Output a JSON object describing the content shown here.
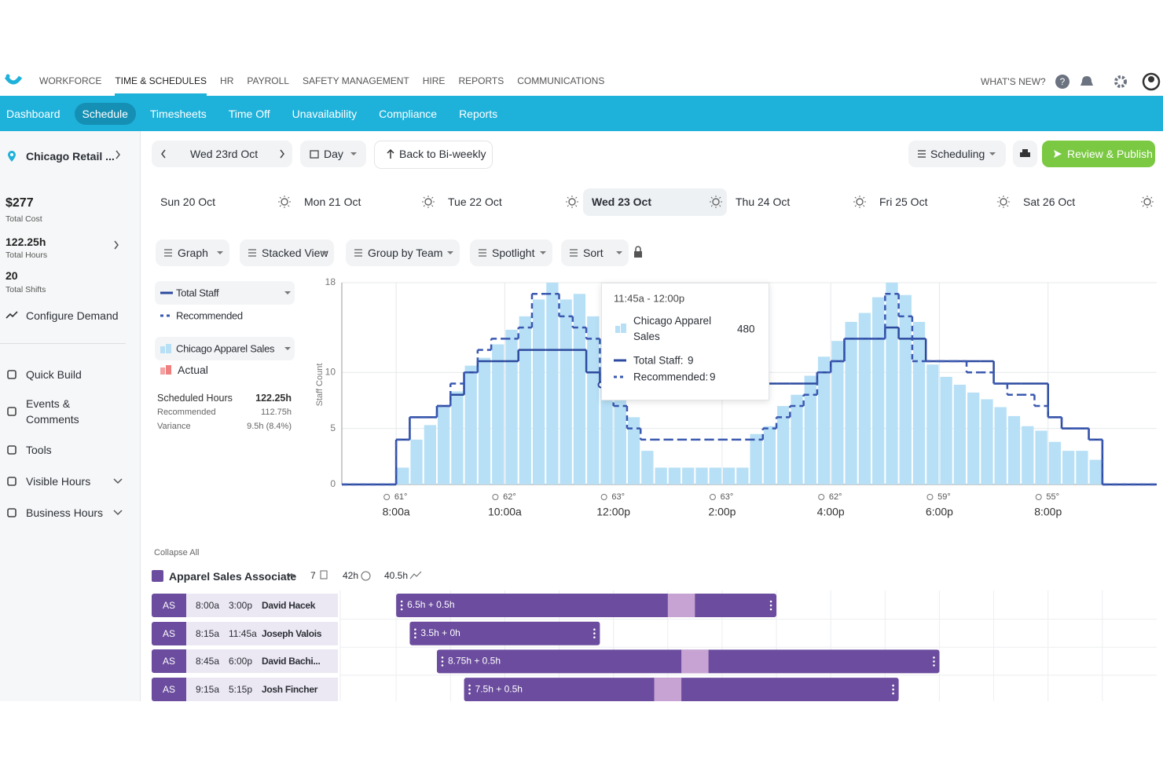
{
  "nav": {
    "items": [
      "WORKFORCE",
      "TIME & SCHEDULES",
      "HR",
      "PAYROLL",
      "SAFETY MANAGEMENT",
      "HIRE",
      "REPORTS",
      "COMMUNICATIONS"
    ],
    "whats_new": "WHAT'S NEW?"
  },
  "subnav": {
    "items": [
      "Dashboard",
      "Schedule",
      "Timesheets",
      "Time Off",
      "Unavailability",
      "Compliance",
      "Reports"
    ]
  },
  "sidebar": {
    "location": "Chicago Retail ...",
    "stats": [
      {
        "value": "$277",
        "label": "Total Cost"
      },
      {
        "value": "122.25h",
        "label": "Total Hours"
      },
      {
        "value": "20",
        "label": "Total Shifts"
      }
    ],
    "configure": "Configure Demand",
    "menu": [
      "Quick Build",
      "Events & Comments",
      "Tools",
      "Visible Hours",
      "Business Hours"
    ]
  },
  "toolbar": {
    "date": "Wed 23rd Oct",
    "view": "Day",
    "back": "Back to Bi-weekly",
    "mode": "Scheduling",
    "publish": "Review & Publish"
  },
  "days": [
    "Sun 20 Oct",
    "Mon 21 Oct",
    "Tue 22 Oct",
    "Wed 23 Oct",
    "Thu 24 Oct",
    "Fri 25 Oct",
    "Sat 26 Oct"
  ],
  "controls": [
    "Graph",
    "Stacked View",
    "Group by Team",
    "Spotlight",
    "Sort"
  ],
  "legend_panel": {
    "actual": "Actual"
  },
  "summary": [
    [
      "Scheduled Hours",
      "122.25h"
    ],
    [
      "Recommended",
      "112.75h"
    ],
    [
      "Variance",
      "9.5h (8.4%)"
    ]
  ],
  "chart_data": {
    "type": "histogram",
    "y_label": "Staff Count",
    "bins": [
      8,
      8.25,
      8.5,
      8.75,
      9,
      9.25,
      9.5,
      9.75,
      10,
      10.25,
      10.5,
      10.75,
      11,
      11.25,
      11.5,
      11.75,
      12,
      12.25,
      12.5,
      12.75,
      13,
      13.25,
      13.5,
      13.75,
      14,
      14.25,
      14.5,
      14.75,
      15,
      15.25,
      15.5,
      15.75,
      16,
      16.25,
      16.5,
      16.75,
      17,
      17.25,
      17.5,
      17.75,
      18,
      18.25,
      18.5,
      18.75,
      19,
      19.25,
      19.5,
      19.75,
      20,
      20.25,
      20.5,
      20.75,
      21
    ],
    "series": [
      {
        "name": "Chicago Apparel Sales",
        "color": "#b7e0f6",
        "mark": "bar",
        "values": [
          1.5,
          4,
          5.3,
          7,
          8.3,
          10.6,
          11.3,
          12.5,
          13.8,
          15,
          16.5,
          18,
          16.5,
          17,
          15,
          13,
          9,
          6,
          3,
          1.5,
          1.5,
          1.5,
          1.5,
          1.5,
          1.5,
          1.5,
          4.5,
          5.2,
          7,
          8,
          9.7,
          11.4,
          12.8,
          14.5,
          15.3,
          16.7,
          18,
          16.9,
          14.5,
          10.7,
          9.6,
          8.9,
          8.2,
          7.6,
          6.9,
          6.1,
          5.2,
          4.8,
          3.8,
          3,
          3,
          2.2
        ]
      },
      {
        "name": "Total Staff",
        "color": "#2c4a9e",
        "mark": "step",
        "dashed": false,
        "values": [
          4,
          6,
          6,
          7,
          8,
          10,
          11,
          11,
          11,
          12,
          12,
          12,
          12,
          12,
          10,
          9,
          9,
          9,
          9,
          9,
          9,
          9,
          9,
          9,
          9,
          9,
          9,
          9,
          9,
          9,
          9,
          10,
          11,
          13,
          13,
          13,
          14,
          13,
          13,
          11,
          11,
          11,
          11,
          11,
          9,
          9,
          9,
          9,
          6,
          5,
          5,
          4
        ]
      },
      {
        "name": "Recommended",
        "color": "#3a58b0",
        "mark": "step",
        "dashed": true,
        "values": [
          4,
          6,
          6,
          7,
          9,
          10,
          12,
          13,
          13,
          14,
          17,
          17,
          15,
          14,
          13,
          9,
          7,
          5,
          4,
          4,
          4,
          4,
          4,
          4,
          4,
          4,
          4,
          5,
          6,
          7,
          8,
          10,
          11,
          13,
          13,
          13,
          17,
          15,
          11,
          11,
          11,
          11,
          10,
          10,
          9,
          8,
          8,
          7,
          6,
          5,
          5,
          4
        ]
      }
    ],
    "xlim": [
      7,
      22
    ],
    "xticks": [
      {
        "value": 8,
        "label": "8:00a"
      },
      {
        "value": 10,
        "label": "10:00a"
      },
      {
        "value": 12,
        "label": "12:00p"
      },
      {
        "value": 14,
        "label": "2:00p"
      },
      {
        "value": 16,
        "label": "4:00p"
      },
      {
        "value": 18,
        "label": "6:00p"
      },
      {
        "value": 20,
        "label": "8:00p"
      }
    ],
    "weather": [
      "61°",
      "62°",
      "63°",
      "63°",
      "62°",
      "59°",
      "55°"
    ],
    "ylim": [
      0,
      18
    ],
    "yticks": [
      0,
      5,
      10,
      18
    ],
    "grid": true,
    "tooltip": {
      "time": "11:45a - 12:00p",
      "value": 480,
      "staff": {
        "label": "Total Staff:",
        "value": 9
      },
      "recommended": {
        "label": "Recommended:",
        "value": 9
      }
    }
  },
  "shifts": {
    "collapse": "Collapse All",
    "group": {
      "name": "Apparel Sales Associate",
      "count": "7",
      "hours": "42h",
      "recommended": "40.5h"
    },
    "rows": [
      {
        "role": "AS",
        "start": "8:00a",
        "end": "3:00p",
        "name": "David Hacek",
        "summary": "6.5h + 0.5h",
        "break": [
          13,
          13.5
        ]
      },
      {
        "role": "AS",
        "start": "8:15a",
        "end": "11:45a",
        "name": "Joseph Valois",
        "summary": "3.5h + 0h"
      },
      {
        "role": "AS",
        "start": "8:45a",
        "end": "6:00p",
        "name": "David Bachi...",
        "summary": "8.75h + 0.5h",
        "break": [
          13.25,
          13.75
        ]
      },
      {
        "role": "AS",
        "start": "9:15a",
        "end": "5:15p",
        "name": "Josh Fincher",
        "summary": "7.5h + 0.5h",
        "break": [
          12.75,
          13.25
        ]
      }
    ]
  }
}
